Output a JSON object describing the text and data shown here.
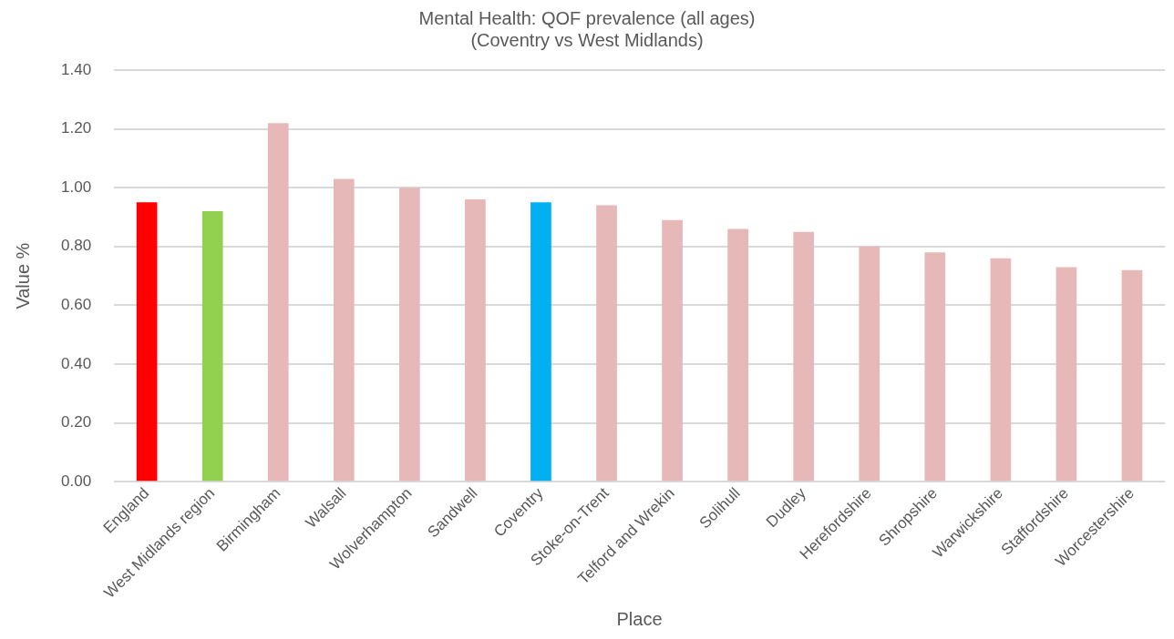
{
  "chart_data": {
    "type": "bar",
    "title": "Mental Health: QOF prevalence (all ages)",
    "subtitle": "(Coventry vs West Midlands)",
    "xlabel": "Place",
    "ylabel": "Value %",
    "categories": [
      "England",
      "West Midlands region",
      "Birmingham",
      "Walsall",
      "Wolverhampton",
      "Sandwell",
      "Coventry",
      "Stoke-on-Trent",
      "Telford and Wrekin",
      "Solihull",
      "Dudley",
      "Herefordshire",
      "Shropshire",
      "Warwickshire",
      "Staffordshire",
      "Worcestershire"
    ],
    "values": [
      0.95,
      0.92,
      1.22,
      1.03,
      1.0,
      0.96,
      0.95,
      0.94,
      0.89,
      0.86,
      0.85,
      0.8,
      0.78,
      0.76,
      0.73,
      0.72
    ],
    "colors": [
      "#ff0000",
      "#92d050",
      "#e6b8b7",
      "#e6b8b7",
      "#e6b8b7",
      "#e6b8b7",
      "#00b0f0",
      "#e6b8b7",
      "#e6b8b7",
      "#e6b8b7",
      "#e6b8b7",
      "#e6b8b7",
      "#e6b8b7",
      "#e6b8b7",
      "#e6b8b7",
      "#e6b8b7"
    ],
    "ylim": [
      0,
      1.4
    ],
    "yticks": [
      {
        "value": 0,
        "label": "0.00"
      },
      {
        "value": 0.2,
        "label": "0.20"
      },
      {
        "value": 0.4,
        "label": "0.40"
      },
      {
        "value": 0.6,
        "label": "0.60"
      },
      {
        "value": 0.8,
        "label": "0.80"
      },
      {
        "value": 1.0,
        "label": "1.00"
      },
      {
        "value": 1.2,
        "label": "1.20"
      },
      {
        "value": 1.4,
        "label": "1.40"
      }
    ],
    "grid": "y",
    "legend": false
  }
}
